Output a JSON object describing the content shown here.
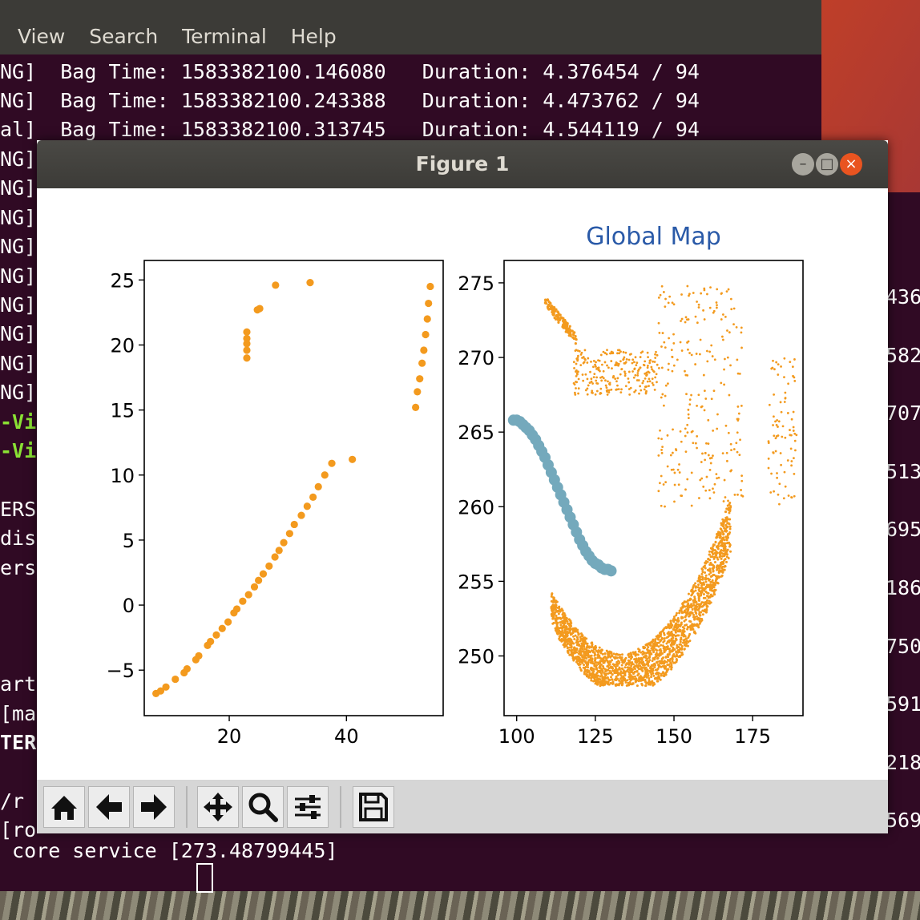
{
  "terminal": {
    "menu": [
      "View",
      "Search",
      "Terminal",
      "Help"
    ],
    "lines": [
      {
        "prefix": "NG]",
        "text": "  Bag Time: 1583382100.146080   Duration: 4.376454 / 94"
      },
      {
        "prefix": "NG]",
        "text": "  Bag Time: 1583382100.243388   Duration: 4.473762 / 94"
      },
      {
        "prefix": "al]",
        "text": "  Bag Time: 1583382100.313745   Duration: 4.544119 / 94"
      }
    ],
    "left_fragments": [
      "NG]",
      "NG]",
      "NG]",
      "NG]",
      "NG]",
      "NG]",
      "NG]",
      "NG]",
      "NG]",
      "-Vi",
      "-Vi",
      "",
      "ERS",
      "dis",
      "ers",
      "",
      "",
      "",
      "art",
      "[ma",
      "TER",
      "",
      "/r",
      "[ro"
    ],
    "right_fragments": [
      "436",
      "582",
      "707",
      "513",
      "695",
      "186",
      "750",
      "591",
      "218",
      "569"
    ],
    "bottom_line": " core service [273.48799445]"
  },
  "figure": {
    "title": "Figure 1",
    "controls": {
      "minimize": "minimize",
      "maximize": "maximize",
      "close": "close"
    }
  },
  "toolbar": {
    "icons": [
      "home-icon",
      "back-arrow-icon",
      "forward-arrow-icon",
      "pan-icon",
      "zoom-icon",
      "configure-subplots-icon",
      "save-icon"
    ]
  },
  "colors": {
    "orange": "#f39a1e",
    "teal": "#74a9bc",
    "title_blue": "#2a5aa8"
  },
  "chart_data": [
    {
      "type": "scatter",
      "title": "",
      "xlabel": "",
      "ylabel": "",
      "xlim": [
        5.5,
        56.5
      ],
      "ylim": [
        -8.5,
        26.5
      ],
      "xticks": [
        20,
        40
      ],
      "yticks": [
        -5,
        0,
        5,
        10,
        15,
        20,
        25
      ],
      "series": [
        {
          "color": "#f39a1e",
          "points": [
            [
              7.5,
              -6.8
            ],
            [
              8.3,
              -6.6
            ],
            [
              9.2,
              -6.3
            ],
            [
              10.8,
              -5.7
            ],
            [
              12.3,
              -5.2
            ],
            [
              12.8,
              -4.9
            ],
            [
              14.3,
              -4.2
            ],
            [
              14.8,
              -3.9
            ],
            [
              16.3,
              -3.1
            ],
            [
              16.8,
              -2.8
            ],
            [
              17.8,
              -2.3
            ],
            [
              18.8,
              -1.8
            ],
            [
              19.8,
              -1.3
            ],
            [
              20.8,
              -0.6
            ],
            [
              21.3,
              -0.3
            ],
            [
              22.3,
              0.3
            ],
            [
              23.3,
              0.8
            ],
            [
              24.3,
              1.4
            ],
            [
              25.0,
              1.9
            ],
            [
              25.8,
              2.4
            ],
            [
              26.8,
              3.0
            ],
            [
              27.8,
              3.7
            ],
            [
              28.5,
              4.2
            ],
            [
              29.3,
              4.8
            ],
            [
              30.3,
              5.5
            ],
            [
              31.1,
              6.2
            ],
            [
              32.3,
              6.9
            ],
            [
              33.3,
              7.6
            ],
            [
              34.3,
              8.3
            ],
            [
              35.2,
              9.1
            ],
            [
              36.3,
              10.0
            ],
            [
              37.5,
              10.9
            ],
            [
              41.0,
              11.2
            ],
            [
              23.0,
              19.0
            ],
            [
              23.0,
              19.6
            ],
            [
              23.0,
              20.1
            ],
            [
              23.0,
              20.5
            ],
            [
              23.0,
              21.0
            ],
            [
              24.8,
              22.7
            ],
            [
              25.2,
              22.8
            ],
            [
              27.9,
              24.6
            ],
            [
              33.8,
              24.8
            ],
            [
              51.8,
              15.2
            ],
            [
              52.1,
              16.4
            ],
            [
              52.5,
              17.4
            ],
            [
              52.9,
              18.6
            ],
            [
              53.2,
              19.6
            ],
            [
              53.5,
              20.8
            ],
            [
              53.8,
              22.0
            ],
            [
              54.0,
              23.2
            ],
            [
              54.3,
              24.5
            ]
          ]
        }
      ]
    },
    {
      "type": "scatter",
      "title": "Global Map",
      "xlabel": "",
      "ylabel": "",
      "xlim": [
        96,
        191
      ],
      "ylim": [
        246,
        276.5
      ],
      "xticks": [
        100,
        125,
        150,
        175
      ],
      "yticks": [
        250,
        255,
        260,
        265,
        270,
        275
      ],
      "series": [
        {
          "name": "",
          "color": "#74a9bc",
          "description": "trajectory",
          "points": [
            [
              99,
              265.8
            ],
            [
              100,
              265.8
            ],
            [
              101,
              265.7
            ],
            [
              102,
              265.5
            ],
            [
              103,
              265.3
            ],
            [
              104,
              265.1
            ],
            [
              105,
              264.8
            ],
            [
              106,
              264.5
            ],
            [
              107,
              264.1
            ],
            [
              108,
              263.7
            ],
            [
              109,
              263.3
            ],
            [
              110,
              262.8
            ],
            [
              111,
              262.3
            ],
            [
              112,
              261.8
            ],
            [
              113,
              261.3
            ],
            [
              114,
              260.8
            ],
            [
              115,
              260.3
            ],
            [
              116,
              259.8
            ],
            [
              117,
              259.3
            ],
            [
              118,
              258.8
            ],
            [
              119,
              258.3
            ],
            [
              120,
              257.8
            ],
            [
              121,
              257.4
            ],
            [
              122,
              257.0
            ],
            [
              123,
              256.7
            ],
            [
              124,
              256.4
            ],
            [
              125,
              256.2
            ],
            [
              126,
              256.1
            ],
            [
              127,
              255.9
            ],
            [
              128,
              255.8
            ],
            [
              129,
              255.8
            ],
            [
              130,
              255.7
            ]
          ]
        },
        {
          "name": "",
          "color": "#f39a1e",
          "description": "map points",
          "clusters": [
            {
              "shape": "arc",
              "x_range": [
                109,
                119
              ],
              "y_start": 273.8,
              "y_end": 271.2
            },
            {
              "shape": "band",
              "x_range": [
                111,
                168
              ],
              "y_min": 248.0,
              "y_max": 262.0
            },
            {
              "shape": "scatter",
              "x_range": [
                118,
                145
              ],
              "y_range": [
                267.5,
                270.5
              ]
            },
            {
              "shape": "scatter",
              "x_range": [
                145,
                172
              ],
              "y_range": [
                260,
                274.8
              ]
            },
            {
              "shape": "scatter",
              "x_range": [
                180,
                189
              ],
              "y_range": [
                260,
                270
              ]
            }
          ]
        }
      ]
    }
  ]
}
